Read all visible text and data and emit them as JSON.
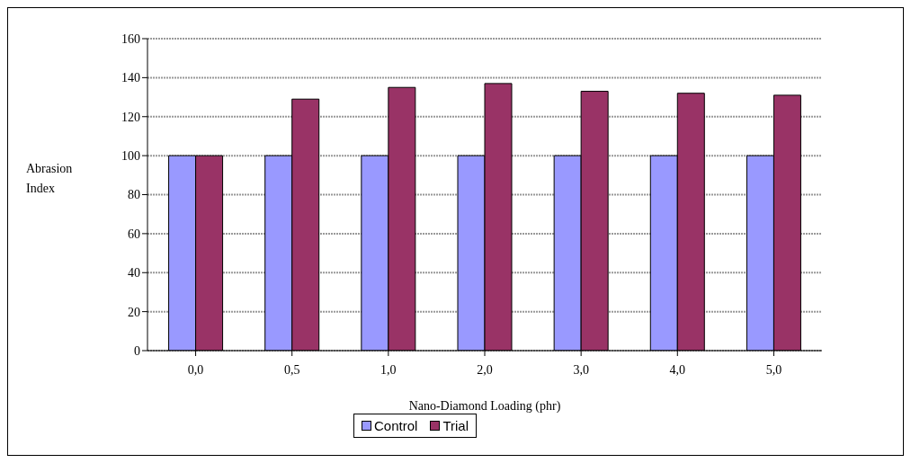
{
  "chart_data": {
    "type": "bar",
    "xlabel": "Nano-Diamond Loading (phr)",
    "ylabel": "Abrasion Index",
    "categories": [
      "0,0",
      "0,5",
      "1,0",
      "2,0",
      "3,0",
      "4,0",
      "5,0"
    ],
    "series": [
      {
        "name": "Control",
        "color": "#9999ff",
        "values": [
          100,
          100,
          100,
          100,
          100,
          100,
          100
        ]
      },
      {
        "name": "Trial",
        "color": "#993366",
        "values": [
          100,
          129,
          135,
          137,
          133,
          132,
          131
        ]
      }
    ],
    "ylim": [
      0,
      160
    ],
    "yticks": [
      0,
      20,
      40,
      60,
      80,
      100,
      120,
      140,
      160
    ],
    "grid": "y",
    "legend": "bottom"
  }
}
